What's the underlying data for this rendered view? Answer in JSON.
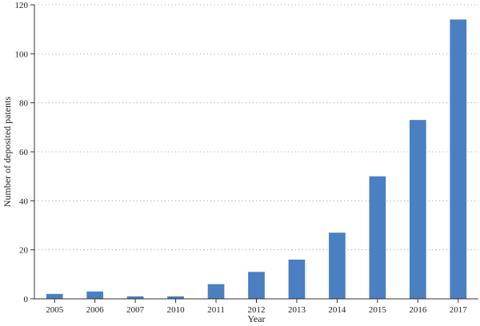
{
  "chart_data": {
    "type": "bar",
    "categories": [
      "2005",
      "2006",
      "2007",
      "2010",
      "2011",
      "2012",
      "2013",
      "2014",
      "2015",
      "2016",
      "2017"
    ],
    "values": [
      2,
      3,
      1,
      1,
      6,
      11,
      16,
      27,
      50,
      73,
      114
    ],
    "xlabel": "Year",
    "ylabel": "Number of deposited patents",
    "ylim": [
      0,
      120
    ],
    "yticks": [
      0,
      20,
      40,
      60,
      80,
      100,
      120
    ],
    "grid": "horizontal dotted",
    "legend": "none",
    "bar_color": "#4a7fc1"
  }
}
